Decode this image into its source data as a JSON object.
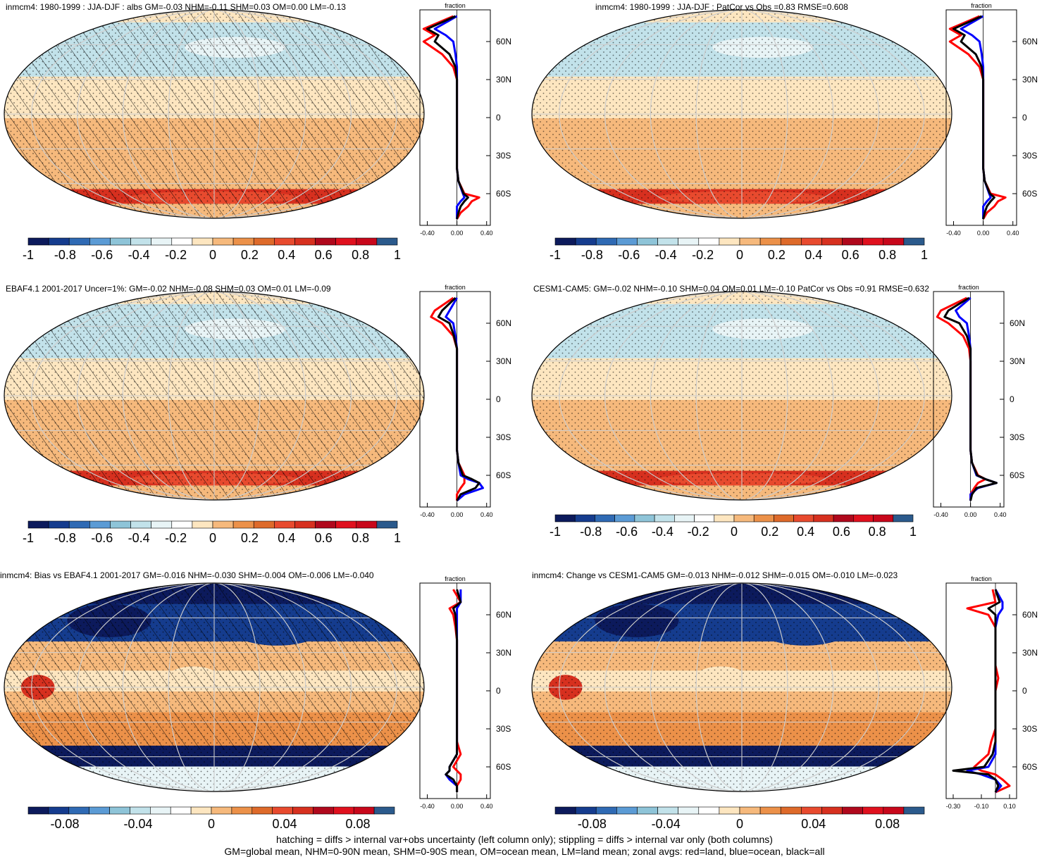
{
  "footer": {
    "line1": "hatching = diffs > internal var+obs uncertainty (left column only); stippling = diffs > internal var only (both columns)",
    "line2": "GM=global mean, NHM=0-90N mean, SHM=0-90S mean, OM=ocean mean, LM=land mean; zonal avgs: red=land, blue=ocean, black=all"
  },
  "colors": {
    "palette": [
      "#0c1a5c",
      "#153c8e",
      "#2f6ab4",
      "#5b9bd5",
      "#8ec4d8",
      "#c2e2ea",
      "#e8f4f6",
      "#ffffff",
      "#fde6c0",
      "#f6b97c",
      "#ec9149",
      "#de6a2a",
      "#e84a2e",
      "#d7301f",
      "#b0081c",
      "#e0101e",
      "#c8071b",
      "#2b5a8c"
    ],
    "zonal_land": "#ff0000",
    "zonal_ocean": "#0000ff",
    "zonal_all": "#000000"
  },
  "chart_data": [
    {
      "type": "heatmap",
      "title": "inmcm4: 1980-1999 : JJA-DJF : albs GM=-0.03 NHM=-0.11 SHM=0.03 OM=0.00 LM=-0.13",
      "colorbar_ticks": [
        "-1",
        "-0.8",
        "-0.6",
        "-0.4",
        "-0.2",
        "0",
        "0.2",
        "0.4",
        "0.6",
        "0.8",
        "1"
      ],
      "colorbar_range": [
        -1,
        1
      ],
      "zonal": {
        "xlabel": "fraction",
        "xticks": [
          "-0.40",
          "0.00",
          "0.40"
        ],
        "xlim": [
          -0.5,
          0.45
        ],
        "lat_ticks": [
          "60N",
          "30N",
          "0",
          "30S",
          "60S"
        ],
        "lat": [
          80,
          70,
          65,
          60,
          50,
          40,
          30,
          20,
          10,
          0,
          -10,
          -20,
          -30,
          -40,
          -50,
          -60,
          -63,
          -66,
          -70,
          -75,
          -80
        ],
        "land": [
          -0.05,
          -0.45,
          -0.3,
          -0.45,
          -0.2,
          -0.05,
          0.0,
          0.0,
          0.0,
          0.0,
          0.0,
          0.0,
          0.0,
          0.0,
          0.02,
          0.1,
          0.3,
          0.2,
          0.15,
          0.05,
          0.0
        ],
        "ocean": [
          0.0,
          -0.3,
          -0.15,
          -0.05,
          -0.02,
          0.0,
          0.0,
          0.0,
          0.0,
          0.0,
          0.0,
          0.0,
          0.0,
          0.0,
          0.02,
          0.08,
          0.1,
          0.05,
          0.0,
          0.0,
          0.0
        ],
        "all": [
          -0.02,
          -0.4,
          -0.25,
          -0.3,
          -0.1,
          -0.02,
          0.0,
          0.0,
          0.0,
          0.0,
          0.0,
          0.0,
          0.0,
          0.0,
          0.02,
          0.09,
          0.15,
          0.1,
          0.05,
          0.02,
          0.0
        ]
      }
    },
    {
      "type": "heatmap",
      "title": "inmcm4: 1980-1999 : JJA-DJF : PatCor vs Obs =0.83 RMSE=0.608",
      "colorbar_ticks": [
        "-1",
        "-0.8",
        "-0.6",
        "-0.4",
        "-0.2",
        "0",
        "0.2",
        "0.4",
        "0.6",
        "0.8",
        "1"
      ],
      "colorbar_range": [
        -1,
        1
      ],
      "zonal": {
        "xlabel": "fraction",
        "xticks": [
          "-0.40",
          "0.00",
          "0.40"
        ],
        "xlim": [
          -0.5,
          0.45
        ],
        "lat_ticks": [
          "60N",
          "30N",
          "0",
          "30S",
          "60S"
        ],
        "lat": [
          80,
          70,
          65,
          60,
          50,
          40,
          30,
          20,
          10,
          0,
          -10,
          -20,
          -30,
          -40,
          -50,
          -60,
          -63,
          -66,
          -70,
          -75,
          -80
        ],
        "land": [
          -0.05,
          -0.45,
          -0.3,
          -0.45,
          -0.2,
          -0.05,
          0.0,
          0.0,
          0.0,
          0.0,
          0.0,
          0.0,
          0.0,
          0.0,
          0.02,
          0.1,
          0.3,
          0.2,
          0.15,
          0.05,
          0.0
        ],
        "ocean": [
          0.0,
          -0.3,
          -0.15,
          -0.05,
          -0.02,
          0.0,
          0.0,
          0.0,
          0.0,
          0.0,
          0.0,
          0.0,
          0.0,
          0.0,
          0.02,
          0.08,
          0.1,
          0.05,
          0.0,
          0.0,
          0.0
        ],
        "all": [
          -0.02,
          -0.4,
          -0.25,
          -0.3,
          -0.1,
          -0.02,
          0.0,
          0.0,
          0.0,
          0.0,
          0.0,
          0.0,
          0.0,
          0.0,
          0.02,
          0.09,
          0.15,
          0.1,
          0.05,
          0.02,
          0.0
        ]
      }
    },
    {
      "type": "heatmap",
      "title": "EBAF4.1 2001-2017 Uncer=1%: GM=-0.02 NHM=-0.08 SHM=0.03 OM=0.01 LM=-0.09",
      "colorbar_ticks": [
        "-1",
        "-0.8",
        "-0.6",
        "-0.4",
        "-0.2",
        "0",
        "0.2",
        "0.4",
        "0.6",
        "0.8",
        "1"
      ],
      "colorbar_range": [
        -1,
        1
      ],
      "zonal": {
        "xlabel": "fraction",
        "xticks": [
          "-0.40",
          "0.00",
          "0.40"
        ],
        "xlim": [
          -0.5,
          0.45
        ],
        "lat_ticks": [
          "60N",
          "30N",
          "0",
          "30S",
          "60S"
        ],
        "lat": [
          80,
          70,
          65,
          60,
          50,
          40,
          30,
          20,
          10,
          0,
          -10,
          -20,
          -30,
          -40,
          -50,
          -60,
          -63,
          -66,
          -70,
          -75,
          -80
        ],
        "land": [
          -0.05,
          -0.3,
          -0.35,
          -0.2,
          -0.05,
          0.0,
          0.0,
          0.0,
          0.0,
          0.0,
          0.0,
          0.0,
          0.0,
          0.0,
          0.02,
          0.1,
          0.1,
          0.1,
          0.05,
          0.0,
          0.0
        ],
        "ocean": [
          0.0,
          -0.1,
          -0.15,
          -0.05,
          -0.02,
          0.0,
          0.0,
          0.0,
          0.0,
          0.0,
          0.0,
          0.0,
          0.0,
          0.0,
          0.02,
          0.05,
          0.15,
          0.3,
          0.35,
          0.1,
          0.0
        ],
        "all": [
          -0.02,
          -0.2,
          -0.25,
          -0.1,
          -0.04,
          0.0,
          0.0,
          0.0,
          0.0,
          0.0,
          0.0,
          0.0,
          0.0,
          0.0,
          0.02,
          0.08,
          0.2,
          0.3,
          0.25,
          0.05,
          0.0
        ]
      }
    },
    {
      "type": "heatmap",
      "title": "CESM1-CAM5: GM=-0.02 NHM=-0.10 SHM=0.04 OM=0.01 LM=-0.10 PatCor vs Obs =0.91 RMSE=0.632",
      "colorbar_ticks": [
        "-1",
        "-0.8",
        "-0.6",
        "-0.4",
        "-0.2",
        "0",
        "0.2",
        "0.4",
        "0.6",
        "0.8",
        "1"
      ],
      "colorbar_range": [
        -1,
        1
      ],
      "zonal": {
        "xlabel": "fraction",
        "xticks": [
          "-0.40",
          "0.00",
          "0.40"
        ],
        "xlim": [
          -0.5,
          0.45
        ],
        "lat_ticks": [
          "60N",
          "30N",
          "0",
          "30S",
          "60S"
        ],
        "lat": [
          80,
          70,
          65,
          60,
          50,
          40,
          30,
          20,
          10,
          0,
          -10,
          -20,
          -30,
          -40,
          -50,
          -60,
          -63,
          -66,
          -70,
          -75,
          -80
        ],
        "land": [
          -0.05,
          -0.4,
          -0.45,
          -0.3,
          -0.1,
          -0.02,
          0.0,
          0.0,
          0.0,
          0.0,
          0.0,
          0.0,
          0.0,
          0.0,
          0.02,
          0.1,
          0.2,
          0.1,
          0.05,
          0.0,
          0.0
        ],
        "ocean": [
          0.0,
          -0.2,
          -0.15,
          -0.05,
          -0.02,
          0.0,
          0.0,
          0.0,
          0.0,
          0.0,
          0.0,
          0.0,
          0.0,
          0.0,
          0.02,
          0.08,
          0.2,
          0.35,
          0.1,
          0.0,
          0.0
        ],
        "all": [
          -0.02,
          -0.3,
          -0.35,
          -0.15,
          -0.05,
          0.0,
          0.0,
          0.0,
          0.0,
          0.0,
          0.0,
          0.0,
          0.0,
          0.0,
          0.02,
          0.09,
          0.2,
          0.35,
          0.08,
          0.02,
          0.0
        ]
      }
    },
    {
      "type": "heatmap",
      "title": "inmcm4: Bias vs EBAF4.1 2001-2017 GM=-0.016 NHM=-0.030 SHM=-0.004 OM=-0.006 LM=-0.040",
      "colorbar_ticks": [
        "-0.08",
        "-0.04",
        "0",
        "0.04",
        "0.08"
      ],
      "colorbar_range": [
        -0.1,
        0.1
      ],
      "zonal": {
        "xlabel": "fraction",
        "xticks": [
          "-0.40",
          "0.00",
          "0.40"
        ],
        "xlim": [
          -0.5,
          0.45
        ],
        "lat_ticks": [
          "60N",
          "30N",
          "0",
          "30S",
          "60S"
        ],
        "lat": [
          80,
          70,
          65,
          60,
          50,
          40,
          30,
          20,
          10,
          0,
          -10,
          -20,
          -30,
          -40,
          -50,
          -60,
          -63,
          -66,
          -70,
          -75,
          -80
        ],
        "land": [
          -0.05,
          0.05,
          -0.1,
          -0.05,
          -0.02,
          0.0,
          0.0,
          0.0,
          0.0,
          0.0,
          0.0,
          0.0,
          0.0,
          0.0,
          0.05,
          -0.05,
          0.0,
          0.05,
          0.05,
          0.0,
          0.0
        ],
        "ocean": [
          0.05,
          0.05,
          0.0,
          0.0,
          0.0,
          0.0,
          0.0,
          0.0,
          0.0,
          0.0,
          0.0,
          0.0,
          0.0,
          0.0,
          0.0,
          -0.1,
          -0.1,
          -0.15,
          -0.1,
          0.0,
          0.0
        ],
        "all": [
          0.0,
          0.05,
          -0.05,
          -0.02,
          -0.01,
          0.0,
          0.0,
          0.0,
          0.0,
          0.0,
          0.0,
          0.0,
          0.0,
          0.0,
          0.0,
          -0.1,
          -0.1,
          -0.15,
          -0.05,
          0.0,
          0.0
        ]
      }
    },
    {
      "type": "heatmap",
      "title": "inmcm4: Change vs CESM1-CAM5 GM=-0.013 NHM=-0.012 SHM=-0.015 OM=-0.010 LM=-0.023",
      "colorbar_ticks": [
        "-0.08",
        "-0.04",
        "0",
        "0.04",
        "0.08"
      ],
      "colorbar_range": [
        -0.1,
        0.1
      ],
      "zonal": {
        "xlabel": "fraction",
        "xticks": [
          "-0.30",
          "-0.10",
          "0.10"
        ],
        "xlim": [
          -0.35,
          0.15
        ],
        "lat_ticks": [
          "60N",
          "30N",
          "0",
          "30S",
          "60S"
        ],
        "lat": [
          80,
          70,
          65,
          60,
          50,
          40,
          30,
          20,
          10,
          0,
          -10,
          -20,
          -30,
          -40,
          -50,
          -60,
          -63,
          -66,
          -70,
          -75,
          -80
        ],
        "land": [
          -0.02,
          0.0,
          -0.2,
          -0.05,
          0.0,
          0.0,
          0.0,
          0.0,
          0.02,
          0.0,
          0.0,
          0.0,
          0.0,
          -0.03,
          -0.05,
          -0.15,
          -0.1,
          0.0,
          0.05,
          0.1,
          0.0
        ],
        "ocean": [
          0.0,
          0.05,
          0.05,
          0.02,
          0.0,
          0.0,
          0.0,
          0.0,
          0.0,
          0.0,
          0.0,
          0.0,
          0.0,
          0.0,
          0.0,
          -0.05,
          -0.2,
          -0.1,
          0.0,
          0.04,
          0.0
        ],
        "all": [
          0.0,
          0.03,
          -0.05,
          0.0,
          0.0,
          0.0,
          0.0,
          0.0,
          0.0,
          0.0,
          0.0,
          0.0,
          0.0,
          0.0,
          -0.02,
          -0.08,
          -0.3,
          -0.05,
          0.0,
          0.02,
          0.0
        ]
      }
    }
  ]
}
